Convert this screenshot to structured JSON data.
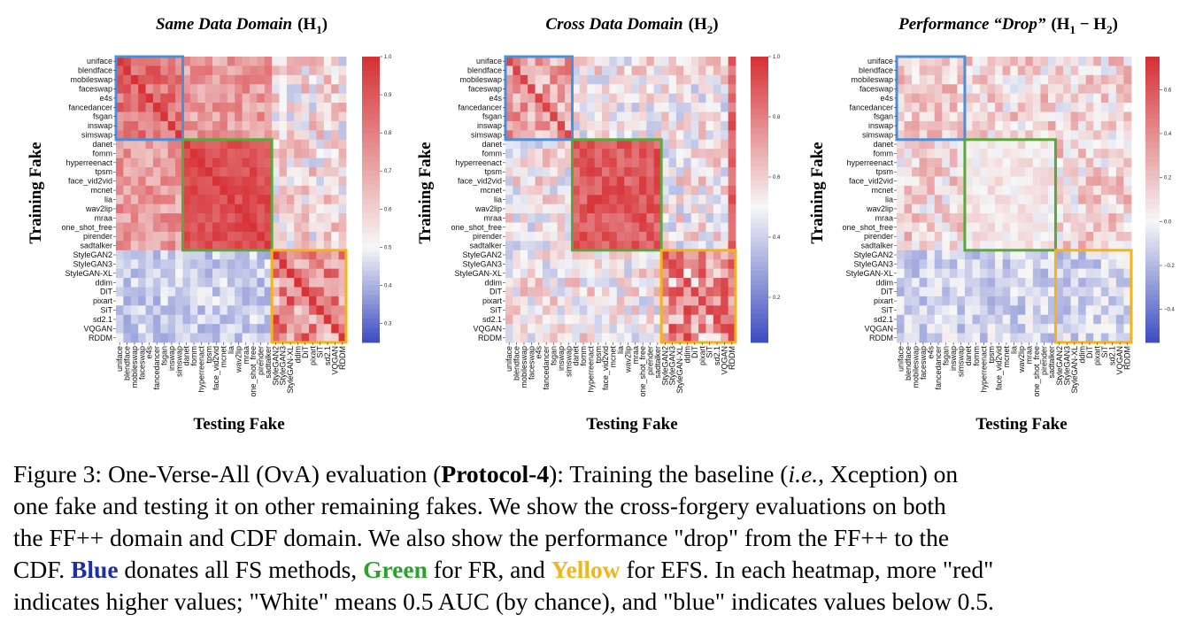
{
  "chart_data": [
    {
      "type": "heatmap",
      "title": "Same Data Domain",
      "title_math": "(H",
      "title_sub": "1",
      "title_math_end": ")",
      "xlabel": "Testing Fake",
      "ylabel": "Training Fake",
      "vmin": 0.25,
      "vmax": 1.0,
      "colorbar_ticks": [
        "1.0",
        "0.9",
        "0.8",
        "0.7",
        "0.6",
        "0.5",
        "0.4",
        "0.3"
      ],
      "colorbar_tick_values": [
        1.0,
        0.9,
        0.8,
        0.7,
        0.6,
        0.5,
        0.4,
        0.3
      ],
      "cmap_center": 0.5
    },
    {
      "type": "heatmap",
      "title": "Cross Data Domain",
      "title_math": "(H",
      "title_sub": "2",
      "title_math_end": ")",
      "xlabel": "Testing Fake",
      "ylabel": "Training Fake",
      "vmin": 0.05,
      "vmax": 1.0,
      "colorbar_ticks": [
        "1.0",
        "0.8",
        "0.6",
        "0.4",
        "0.2"
      ],
      "colorbar_tick_values": [
        1.0,
        0.8,
        0.6,
        0.4,
        0.2
      ],
      "cmap_center": 0.5
    },
    {
      "type": "heatmap",
      "title": "Performance “Drop”",
      "title_math": "(H",
      "title_sub": "1",
      "title_math_mid": " − H",
      "title_sub2": "2",
      "title_math_end": ")",
      "xlabel": "Testing Fake",
      "ylabel": "Training Fake",
      "vmin": -0.55,
      "vmax": 0.75,
      "colorbar_ticks": [
        "0.6",
        "0.4",
        "0.2",
        "0.0",
        "−0.2",
        "−0.4"
      ],
      "colorbar_tick_values": [
        0.6,
        0.4,
        0.2,
        0.0,
        -0.2,
        -0.4
      ],
      "cmap_center": 0.0
    }
  ],
  "labels": [
    "uniface",
    "blendface",
    "mobileswap",
    "faceswap",
    "e4s",
    "fancedancer",
    "fsgan",
    "inswap",
    "simswap",
    "danet",
    "fomm",
    "hyperreenact",
    "tpsm",
    "face_vid2vid",
    "mcnet",
    "lia",
    "wav2lip",
    "mraa",
    "one_shot_free",
    "pirender",
    "sadtalker",
    "StyleGAN2",
    "StyleGAN3",
    "StyleGAN-XL",
    "ddim",
    "DiT",
    "pixart",
    "SiT",
    "sd2.1",
    "VQGAN",
    "RDDM"
  ],
  "groups": [
    {
      "name": "FS",
      "start": 0,
      "end": 8,
      "color": "#4a90d9"
    },
    {
      "name": "FR",
      "start": 9,
      "end": 20,
      "color": "#5aa83a"
    },
    {
      "name": "EFS",
      "start": 21,
      "end": 30,
      "color": "#f5b414"
    }
  ],
  "colors": {
    "low": "#3b4cc0",
    "mid": "#f7f7f7",
    "high": "#d62f33"
  },
  "caption": {
    "l1_a": "Figure 3: One-Verse-All (OvA) evaluation (",
    "l1_b": "Protocol-4",
    "l1_c": "): Training the baseline (",
    "l1_d": "i.e.",
    "l1_e": ", Xception) on",
    "l2": "one fake and testing it on other remaining fakes.  We show the cross-forgery evaluations on both",
    "l3": "the FF++ domain and CDF domain.  We also show the performance \"drop\" from the FF++ to the",
    "l4_a": "CDF. ",
    "l4_b": "Blue",
    "l4_c": " donates all FS methods, ",
    "l4_d": "Green",
    "l4_e": " for FR, and ",
    "l4_f": "Yellow",
    "l4_g": " for EFS. In each heatmap, more \"red\"",
    "l5": "indicates higher values; \"White\" means 0.5 AUC (by chance), and \"blue\" indicates values below 0.5."
  }
}
